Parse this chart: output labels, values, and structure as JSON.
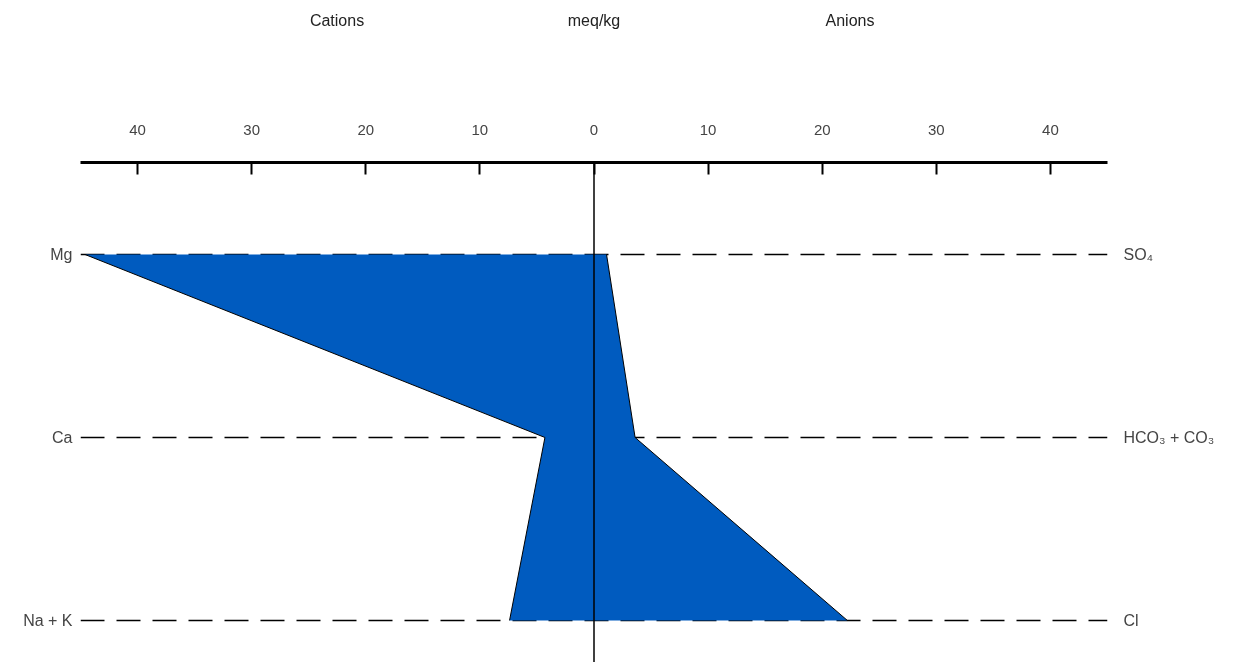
{
  "chart_data": {
    "type": "area",
    "orientation": "horizontal",
    "annotations": [
      "Cations",
      "meq/kg",
      "Anions"
    ],
    "categories": [
      "Mg",
      "Ca",
      "Na + K"
    ],
    "y2_categories": [
      "SO₄",
      "HCO₃ + CO₃",
      "Cl"
    ],
    "series": [
      {
        "color": "#005bbf",
        "values": [
          -44.6,
          -4.3,
          -7.4
        ]
      },
      {
        "color": "#005bbf",
        "values": [
          1.1,
          3.6,
          22.2
        ]
      }
    ],
    "xlim": [
      -45,
      45
    ],
    "xticks": [
      {
        "value": -40,
        "label": "40"
      },
      {
        "value": -30,
        "label": "30"
      },
      {
        "value": -20,
        "label": "20"
      },
      {
        "value": -10,
        "label": "10"
      },
      0,
      10,
      20,
      30,
      40
    ],
    "grid": "y",
    "line_style": "dashed",
    "ref_lines": [
      {
        "axis": "x",
        "value": 0,
        "label": null
      }
    ]
  }
}
